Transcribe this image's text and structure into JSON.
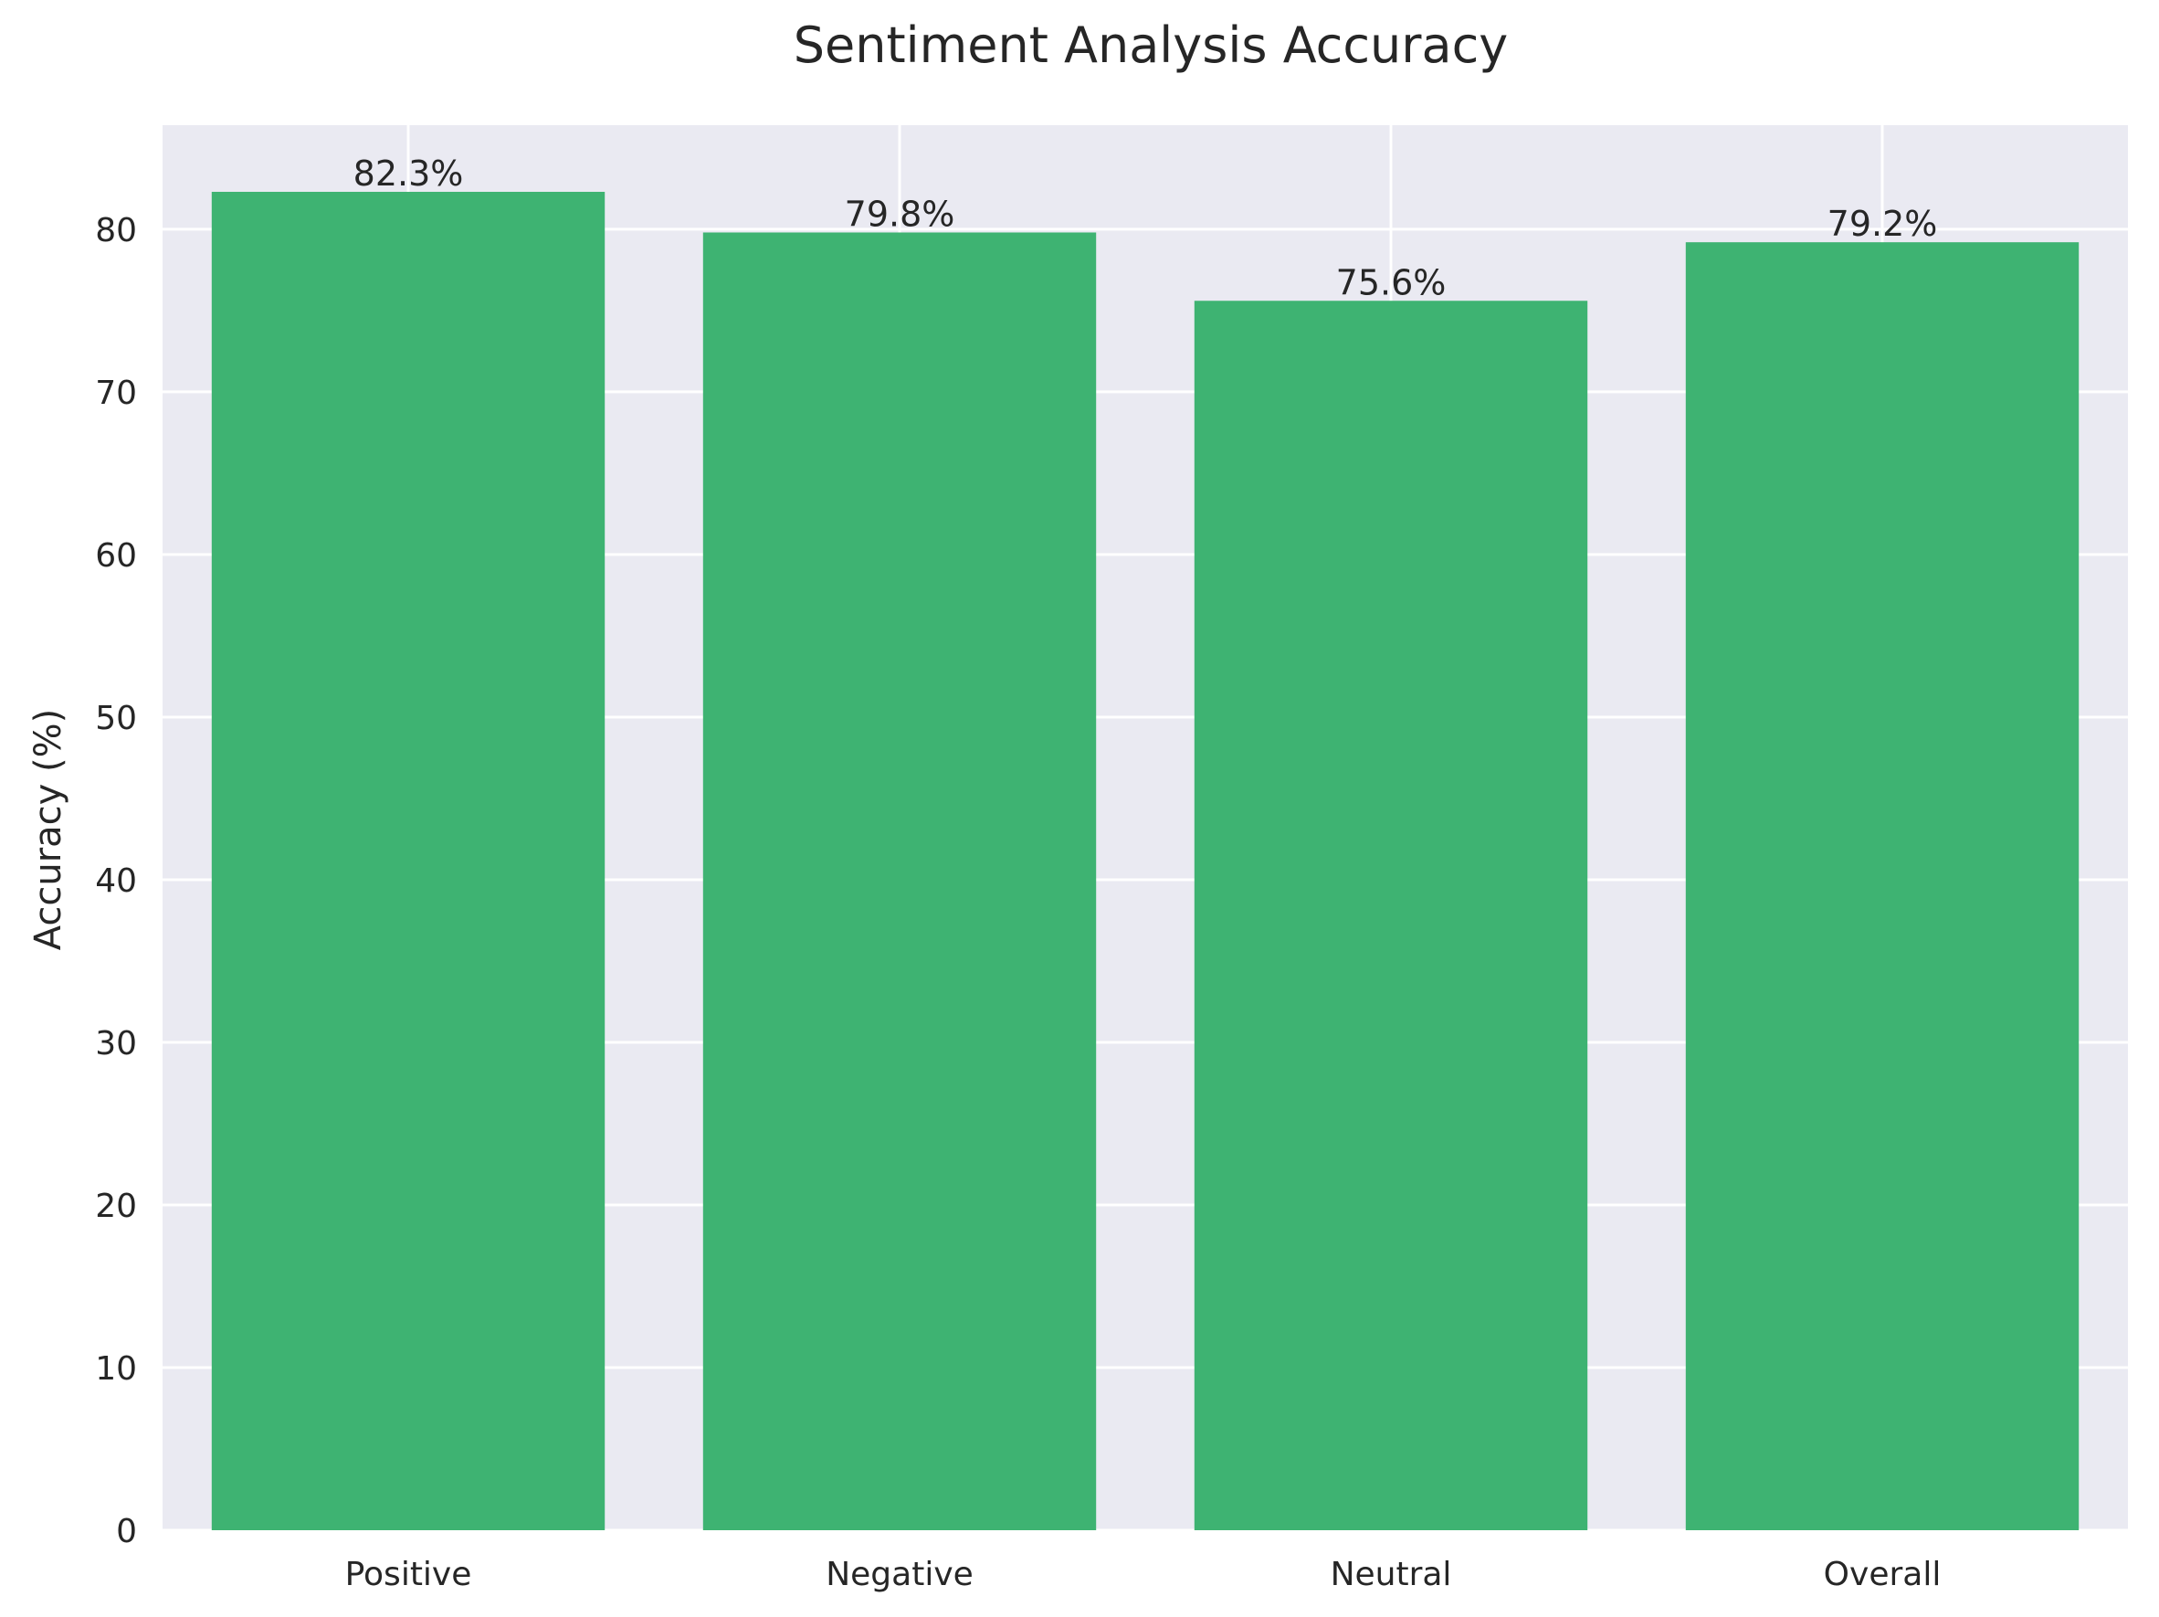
{
  "chart_data": {
    "type": "bar",
    "title": "Sentiment Analysis Accuracy",
    "xlabel": "",
    "ylabel": "Accuracy (%)",
    "categories": [
      "Positive",
      "Negative",
      "Neutral",
      "Overall"
    ],
    "values": [
      82.3,
      79.8,
      75.6,
      79.2
    ],
    "data_labels": [
      "82.3%",
      "79.8%",
      "75.6%",
      "79.2%"
    ],
    "ylim": [
      0,
      86.4
    ],
    "yticks": [
      0,
      10,
      20,
      30,
      40,
      50,
      60,
      70,
      80
    ],
    "grid": true,
    "legend": "none"
  },
  "colors": {
    "bar": "#3eb372",
    "plot_background": "#eaeaf2",
    "grid": "#ffffff",
    "text": "#262626"
  }
}
